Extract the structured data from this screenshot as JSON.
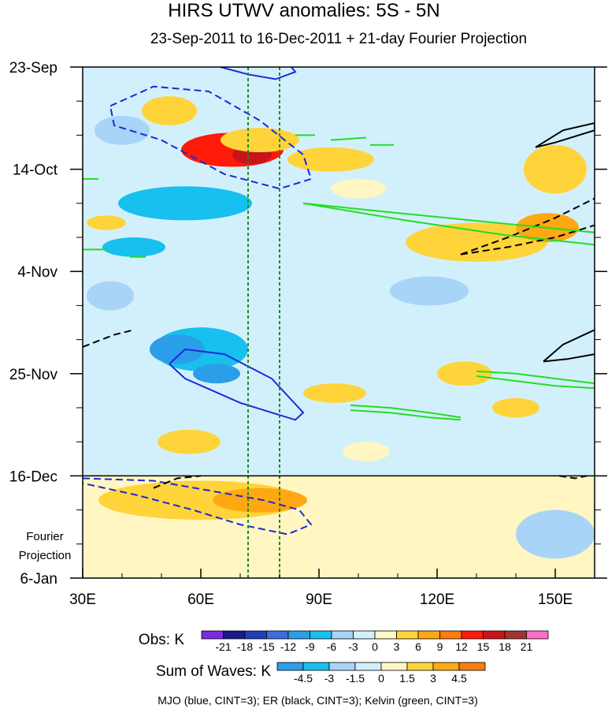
{
  "chart_data": {
    "type": "heatmap",
    "title": "HIRS UTWV anomalies: 5S - 5N",
    "subtitle": "23-Sep-2011 to 16-Dec-2011 + 21-day Fourier Projection",
    "x_ticks": [
      "30E",
      "60E",
      "90E",
      "120E",
      "150E"
    ],
    "x_tick_values": [
      30,
      60,
      90,
      120,
      150
    ],
    "xlim": [
      30,
      160
    ],
    "y_ticks": [
      "23-Sep",
      "14-Oct",
      "4-Nov",
      "25-Nov",
      "16-Dec",
      "6-Jan"
    ],
    "y_tick_values": [
      0,
      21,
      42,
      63,
      84,
      105
    ],
    "ylim": [
      0,
      105
    ],
    "projection_label": [
      "Fourier",
      "Projection"
    ],
    "observation_end_day": 84,
    "reference_longitudes": [
      72,
      80
    ],
    "obs_legend": {
      "label": "Obs: K",
      "levels": [
        "-21",
        "-18",
        "-15",
        "-12",
        "-9",
        "-6",
        "-3",
        "0",
        "3",
        "6",
        "9",
        "12",
        "15",
        "18",
        "21"
      ],
      "colors": [
        "#7b2ae0",
        "#1a1a8c",
        "#1f3fb8",
        "#3a6ee0",
        "#2a9ee8",
        "#17c0ee",
        "#a8d4f8",
        "#d2f0fc",
        "#fff6c2",
        "#ffd43a",
        "#ffa812",
        "#ff7b0a",
        "#ff1a0a",
        "#c8141a",
        "#a43232",
        "#ff6ec8"
      ]
    },
    "waves_legend": {
      "label": "Sum of Waves: K",
      "levels": [
        "-4.5",
        "-3",
        "-1.5",
        "0",
        "1.5",
        "3",
        "4.5"
      ],
      "colors": [
        "#2a9ee8",
        "#17c0ee",
        "#a8d4f8",
        "#d2f0fc",
        "#fff6c2",
        "#ffd43a",
        "#ffa812",
        "#ff7b0a"
      ]
    },
    "footnote": "MJO (blue, CINT=3); ER (black, CINT=3); Kelvin (green, CINT=3)",
    "wave_colors": {
      "mjo": "#1a2ad8",
      "er": "#000000",
      "kelvin": "#22dd22",
      "reference": "#1e8c1e"
    },
    "blobs": [
      {
        "lon": 68,
        "day": 17,
        "rlon": 13,
        "rday": 3.5,
        "level": 5
      },
      {
        "lon": 73,
        "day": 18,
        "rlon": 5,
        "rday": 2,
        "level": 6
      },
      {
        "lon": 52,
        "day": 9,
        "rlon": 7,
        "rday": 3,
        "level": 2
      },
      {
        "lon": 75,
        "day": 15,
        "rlon": 10,
        "rday": 2.5,
        "level": 2
      },
      {
        "lon": 93,
        "day": 19,
        "rlon": 11,
        "rday": 2.5,
        "level": 2
      },
      {
        "lon": 150,
        "day": 21,
        "rlon": 8,
        "rday": 5,
        "level": 2
      },
      {
        "lon": 130,
        "day": 36,
        "rlon": 18,
        "rday": 4,
        "level": 2
      },
      {
        "lon": 148,
        "day": 33,
        "rlon": 8,
        "rday": 3,
        "level": 3
      },
      {
        "lon": 100,
        "day": 25,
        "rlon": 7,
        "rday": 2,
        "level": 1
      },
      {
        "lon": 36,
        "day": 32,
        "rlon": 5,
        "rday": 1.5,
        "level": 2
      },
      {
        "lon": 94,
        "day": 67,
        "rlon": 8,
        "rday": 2,
        "level": 2
      },
      {
        "lon": 127,
        "day": 63,
        "rlon": 7,
        "rday": 2.5,
        "level": 2
      },
      {
        "lon": 140,
        "day": 70,
        "rlon": 6,
        "rday": 2,
        "level": 2
      },
      {
        "lon": 57,
        "day": 77,
        "rlon": 8,
        "rday": 2.5,
        "level": 2
      },
      {
        "lon": 102,
        "day": 79,
        "rlon": 6,
        "rday": 2,
        "level": 1
      },
      {
        "lon": 60,
        "day": 89,
        "rlon": 26,
        "rday": 4,
        "level": 2
      },
      {
        "lon": 75,
        "day": 89,
        "rlon": 12,
        "rday": 2.5,
        "level": 3
      },
      {
        "lon": 110,
        "day": 88,
        "rlon": 20,
        "rday": 3,
        "level": 1
      },
      {
        "lon": 60,
        "day": 58,
        "rlon": 12,
        "rday": 4.5,
        "level": -2
      },
      {
        "lon": 54,
        "day": 58,
        "rlon": 7,
        "rday": 3,
        "level": -3
      },
      {
        "lon": 64,
        "day": 63,
        "rlon": 6,
        "rday": 2,
        "level": -3
      },
      {
        "lon": 56,
        "day": 28,
        "rlon": 17,
        "rday": 3.5,
        "level": -2
      },
      {
        "lon": 43,
        "day": 37,
        "rlon": 8,
        "rday": 2,
        "level": -2
      },
      {
        "lon": 40,
        "day": 13,
        "rlon": 7,
        "rday": 3,
        "level": -1
      },
      {
        "lon": 118,
        "day": 46,
        "rlon": 10,
        "rday": 3,
        "level": -1
      },
      {
        "lon": 37,
        "day": 47,
        "rlon": 6,
        "rday": 3,
        "level": -1
      },
      {
        "lon": 40,
        "day": 100,
        "rlon": 9,
        "rday": 4,
        "level": 1
      },
      {
        "lon": 150,
        "day": 96,
        "rlon": 10,
        "rday": 5,
        "level": -1
      }
    ],
    "contours": [
      {
        "wave": "mjo",
        "dash": true,
        "points": [
          [
            37,
            8
          ],
          [
            48,
            4
          ],
          [
            62,
            5
          ],
          [
            75,
            11
          ],
          [
            86,
            18
          ],
          [
            88,
            23
          ],
          [
            80,
            25
          ],
          [
            66,
            22
          ],
          [
            50,
            15
          ],
          [
            38,
            12
          ],
          [
            37,
            8
          ]
        ]
      },
      {
        "wave": "mjo",
        "dash": false,
        "points": [
          [
            65,
            0
          ],
          [
            72,
            1.5
          ],
          [
            79,
            2.5
          ],
          [
            84,
            1
          ],
          [
            83,
            0
          ]
        ]
      },
      {
        "wave": "mjo",
        "dash": false,
        "points": [
          [
            52,
            61
          ],
          [
            56,
            58
          ],
          [
            66,
            59
          ],
          [
            78,
            64
          ],
          [
            86,
            71
          ],
          [
            84,
            72.5
          ],
          [
            70,
            69
          ],
          [
            56,
            64
          ],
          [
            52,
            61
          ]
        ]
      },
      {
        "wave": "mjo",
        "dash": true,
        "points": [
          [
            30,
            84.5
          ],
          [
            48,
            85
          ],
          [
            62,
            87
          ],
          [
            76,
            89
          ],
          [
            85,
            91
          ],
          [
            88,
            94
          ],
          [
            82,
            96
          ],
          [
            70,
            94
          ],
          [
            58,
            91
          ],
          [
            44,
            88
          ],
          [
            30,
            85.5
          ]
        ]
      },
      {
        "wave": "er",
        "dash": false,
        "points": [
          [
            145,
            16.5
          ],
          [
            152,
            13
          ],
          [
            160,
            11.5
          ],
          [
            160,
            13
          ],
          [
            150,
            15.5
          ],
          [
            145,
            16.5
          ]
        ]
      },
      {
        "wave": "er",
        "dash": true,
        "points": [
          [
            126,
            38.5
          ],
          [
            138,
            35
          ],
          [
            150,
            31
          ],
          [
            160,
            27
          ]
        ]
      },
      {
        "wave": "er",
        "dash": true,
        "points": [
          [
            126,
            38.5
          ],
          [
            138,
            37
          ],
          [
            150,
            35
          ],
          [
            160,
            32.5
          ]
        ]
      },
      {
        "wave": "er",
        "dash": true,
        "points": [
          [
            30,
            57.5
          ],
          [
            38,
            55
          ],
          [
            43,
            54
          ]
        ]
      },
      {
        "wave": "er",
        "dash": false,
        "points": [
          [
            147,
            60.5
          ],
          [
            152,
            57
          ],
          [
            160,
            54
          ]
        ]
      },
      {
        "wave": "er",
        "dash": false,
        "points": [
          [
            147,
            60.5
          ],
          [
            153,
            60
          ],
          [
            160,
            59
          ]
        ]
      },
      {
        "wave": "er",
        "dash": true,
        "points": [
          [
            48,
            86.5
          ],
          [
            54,
            84.5
          ],
          [
            60,
            84
          ]
        ]
      },
      {
        "wave": "er",
        "dash": true,
        "points": [
          [
            151,
            84
          ],
          [
            155,
            84.5
          ],
          [
            158,
            84
          ]
        ]
      },
      {
        "wave": "kelvin",
        "dash": false,
        "points": [
          [
            86,
            28
          ],
          [
            110,
            30
          ],
          [
            135,
            32
          ],
          [
            160,
            34
          ]
        ]
      },
      {
        "wave": "kelvin",
        "dash": false,
        "points": [
          [
            86,
            28
          ],
          [
            112,
            31.5
          ],
          [
            137,
            34.5
          ],
          [
            160,
            36.5
          ]
        ]
      },
      {
        "wave": "kelvin",
        "dash": false,
        "points": [
          [
            93,
            15
          ],
          [
            102,
            14.5
          ]
        ]
      },
      {
        "wave": "kelvin",
        "dash": false,
        "points": [
          [
            103,
            16
          ],
          [
            109,
            16
          ]
        ]
      },
      {
        "wave": "kelvin",
        "dash": false,
        "points": [
          [
            84,
            14
          ],
          [
            89,
            14
          ]
        ]
      },
      {
        "wave": "kelvin",
        "dash": false,
        "points": [
          [
            30,
            23
          ],
          [
            34,
            23
          ]
        ]
      },
      {
        "wave": "kelvin",
        "dash": false,
        "points": [
          [
            30,
            37.5
          ],
          [
            36,
            37.5
          ]
        ]
      },
      {
        "wave": "kelvin",
        "dash": false,
        "points": [
          [
            42,
            39
          ],
          [
            46,
            39
          ]
        ]
      },
      {
        "wave": "kelvin",
        "dash": false,
        "points": [
          [
            130,
            62.5
          ],
          [
            140,
            63
          ],
          [
            150,
            64
          ],
          [
            160,
            65
          ]
        ]
      },
      {
        "wave": "kelvin",
        "dash": false,
        "points": [
          [
            130,
            63.5
          ],
          [
            140,
            64.5
          ],
          [
            150,
            65.5
          ],
          [
            160,
            66
          ]
        ]
      },
      {
        "wave": "kelvin",
        "dash": false,
        "points": [
          [
            98,
            69.5
          ],
          [
            108,
            70
          ],
          [
            118,
            71
          ],
          [
            126,
            72
          ]
        ]
      },
      {
        "wave": "kelvin",
        "dash": false,
        "points": [
          [
            98,
            70.5
          ],
          [
            108,
            71
          ],
          [
            118,
            72
          ],
          [
            126,
            72.5
          ]
        ]
      }
    ]
  }
}
